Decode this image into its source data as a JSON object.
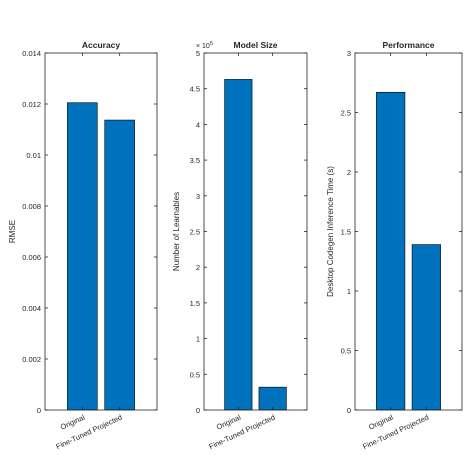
{
  "chart_data": [
    {
      "type": "bar",
      "title": "Accuracy",
      "ylabel": "RMSE",
      "categories": [
        "Original",
        "Fine-Tuned Projected"
      ],
      "values": [
        0.01205,
        0.01137
      ],
      "ylim": [
        0,
        0.014
      ],
      "yticks": [
        0,
        0.002,
        0.004,
        0.006,
        0.008,
        0.01,
        0.012,
        0.014
      ],
      "ytick_labels": [
        "0",
        "0.002",
        "0.004",
        "0.006",
        "0.008",
        "0.01",
        "0.012",
        "0.014"
      ],
      "exponent_label": "",
      "bar_color": "#0072BD",
      "grid": false
    },
    {
      "type": "bar",
      "title": "Model Size",
      "ylabel": "Number of Learnables",
      "categories": [
        "Original",
        "Fine-Tuned Projected"
      ],
      "values": [
        463000,
        32000
      ],
      "ylim": [
        0,
        500000
      ],
      "yticks": [
        0,
        50000,
        100000,
        150000,
        200000,
        250000,
        300000,
        350000,
        400000,
        450000,
        500000
      ],
      "ytick_labels": [
        "0",
        "0.5",
        "1",
        "1.5",
        "2",
        "2.5",
        "3",
        "3.5",
        "4",
        "4.5",
        "5"
      ],
      "exponent_label": "× 10^5",
      "bar_color": "#0072BD",
      "grid": false
    },
    {
      "type": "bar",
      "title": "Performance",
      "ylabel": "Desktop Codegen Inference Time (s)",
      "categories": [
        "Original",
        "Fine-Tuned Projected"
      ],
      "values": [
        2.67,
        1.39
      ],
      "ylim": [
        0,
        3
      ],
      "yticks": [
        0,
        0.5,
        1,
        1.5,
        2,
        2.5,
        3
      ],
      "ytick_labels": [
        "0",
        "0.5",
        "1",
        "1.5",
        "2",
        "2.5",
        "3"
      ],
      "exponent_label": "",
      "bar_color": "#0072BD",
      "grid": false
    }
  ]
}
